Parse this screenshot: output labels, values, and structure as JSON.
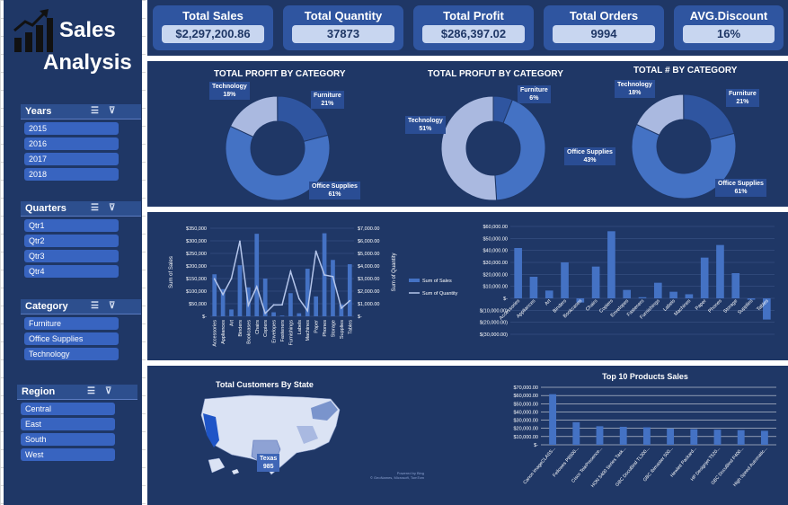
{
  "header": {
    "title_line1": "Sales",
    "title_line2": "Analysis"
  },
  "kpis": [
    {
      "label": "Total Sales",
      "value": "$2,297,200.86"
    },
    {
      "label": "Total Quantity",
      "value": "37873"
    },
    {
      "label": "Total Profit",
      "value": "$286,397.02"
    },
    {
      "label": "Total Orders",
      "value": "9994"
    },
    {
      "label": "AVG.Discount",
      "value": "16%"
    }
  ],
  "slicers": {
    "years": {
      "title": "Years",
      "items": [
        "2015",
        "2016",
        "2017",
        "2018"
      ]
    },
    "quarters": {
      "title": "Quarters",
      "items": [
        "Qtr1",
        "Qtr2",
        "Qtr3",
        "Qtr4"
      ]
    },
    "category": {
      "title": "Category",
      "items": [
        "Furniture",
        "Office Supplies",
        "Technology"
      ]
    },
    "region": {
      "title": "Region",
      "items": [
        "Central",
        "East",
        "South",
        "West"
      ]
    }
  },
  "colors": {
    "panel": "#1f3766",
    "accent": "#3864c0",
    "light": "#aab9e0",
    "mid": "#4472c4",
    "dark": "#2f55a0"
  },
  "donuts": {
    "profit": {
      "title": "TOTAL PROFIT BY CATEGORY",
      "labels": [
        {
          "name": "Technology",
          "pct": "18%"
        },
        {
          "name": "Furniture",
          "pct": "21%"
        },
        {
          "name": "Office Supplies",
          "pct": "61%"
        }
      ]
    },
    "profut": {
      "title": "TOTAL PROFUT BY CATEGORY",
      "labels": [
        {
          "name": "Furniture",
          "pct": "6%"
        },
        {
          "name": "Technology",
          "pct": "51%"
        },
        {
          "name": "Office Supplies",
          "pct": "43%"
        }
      ]
    },
    "count": {
      "title": "TOTAL # BY CATEGORY",
      "labels": [
        {
          "name": "Technology",
          "pct": "18%"
        },
        {
          "name": "Furniture",
          "pct": "21%"
        },
        {
          "name": "Office Supplies",
          "pct": "61%"
        }
      ]
    }
  },
  "chart_data": [
    {
      "type": "pie",
      "title": "TOTAL PROFIT BY CATEGORY",
      "categories": [
        "Technology",
        "Furniture",
        "Office Supplies"
      ],
      "values": [
        18,
        21,
        61
      ]
    },
    {
      "type": "pie",
      "title": "TOTAL PROFUT BY CATEGORY",
      "categories": [
        "Furniture",
        "Office Supplies",
        "Technology"
      ],
      "values": [
        6,
        43,
        51
      ]
    },
    {
      "type": "pie",
      "title": "TOTAL # BY CATEGORY",
      "categories": [
        "Technology",
        "Furniture",
        "Office Supplies"
      ],
      "values": [
        18,
        21,
        61
      ]
    },
    {
      "type": "bar",
      "title": "",
      "categories": [
        "Accessories",
        "Appliances",
        "Art",
        "Binders",
        "Bookcases",
        "Chairs",
        "Copiers",
        "Envelopes",
        "Fasteners",
        "Furnishings",
        "Labels",
        "Machines",
        "Paper",
        "Phones",
        "Storage",
        "Supplies",
        "Tables"
      ],
      "series": [
        {
          "name": "Sum of Sales",
          "values": [
            167000,
            108000,
            27000,
            203000,
            115000,
            328000,
            150000,
            16000,
            3000,
            92000,
            12000,
            189000,
            79000,
            330000,
            224000,
            47000,
            207000
          ]
        },
        {
          "name": "Sum of Quantity",
          "values": [
            2976,
            1729,
            3000,
            5974,
            868,
            2356,
            234,
            906,
            914,
            3563,
            1400,
            440,
            5178,
            3289,
            3158,
            647,
            1241
          ]
        }
      ],
      "ylabel": "Sum of Sales",
      "y2label": "Sum of Quantity",
      "ylim": [
        0,
        350000
      ],
      "y2lim": [
        0,
        7000
      ],
      "yticks": [
        "$-",
        "$50,000",
        "$100,000",
        "$150,000",
        "$200,000",
        "$250,000",
        "$300,000",
        "$350,000"
      ],
      "y2ticks": [
        "$-",
        "$1,000.00",
        "$2,000.00",
        "$3,000.00",
        "$4,000.00",
        "$5,000.00",
        "$6,000.00",
        "$7,000.00"
      ],
      "legend": "right"
    },
    {
      "type": "bar",
      "title": "",
      "categories": [
        "Accessories",
        "Appliances",
        "Art",
        "Binders",
        "Bookcases",
        "Chairs",
        "Copiers",
        "Envelopes",
        "Fasteners",
        "Furnishings",
        "Labels",
        "Machines",
        "Paper",
        "Phones",
        "Storage",
        "Supplies",
        "Tables"
      ],
      "values": [
        42000,
        18000,
        6500,
        30000,
        -3500,
        26500,
        56000,
        7000,
        950,
        13000,
        5500,
        3400,
        34000,
        44500,
        21000,
        -1200,
        -17700
      ],
      "ylim": [
        -30000,
        60000
      ],
      "yticks": [
        "$(30,000.00)",
        "$(20,000.00)",
        "$(10,000.00)",
        "$-",
        "$10,000.00",
        "$20,000.00",
        "$30,000.00",
        "$40,000.00",
        "$50,000.00",
        "$60,000.00"
      ]
    },
    {
      "type": "bar",
      "title": "Top 10 Products Sales",
      "categories": [
        "Canon imageCLASS...",
        "Fellowes PB500...",
        "Cisco TelePresence...",
        "HON 5400 Series Task...",
        "GBC DocuBind TL300...",
        "GBC Ibimaster 500...",
        "Hewlett Packard...",
        "HP Designjet T520...",
        "GBC DocuBind P400...",
        "High Speed Automatic..."
      ],
      "values": [
        61600,
        27500,
        22600,
        21900,
        21300,
        19800,
        19000,
        18400,
        17800,
        17000
      ],
      "ylim": [
        0,
        70000
      ],
      "yticks": [
        "$-",
        "$10,000.00",
        "$20,000.00",
        "$30,000.00",
        "$40,000.00",
        "$50,000.00",
        "$60,000.00",
        "$70,000.00"
      ]
    }
  ],
  "map": {
    "title": "Total Customers By State",
    "callout_state": "Texas",
    "callout_value": "985",
    "credit_line1": "Powered by Bing",
    "credit_line2": "© GeoNames, Microsoft, TomTom"
  }
}
